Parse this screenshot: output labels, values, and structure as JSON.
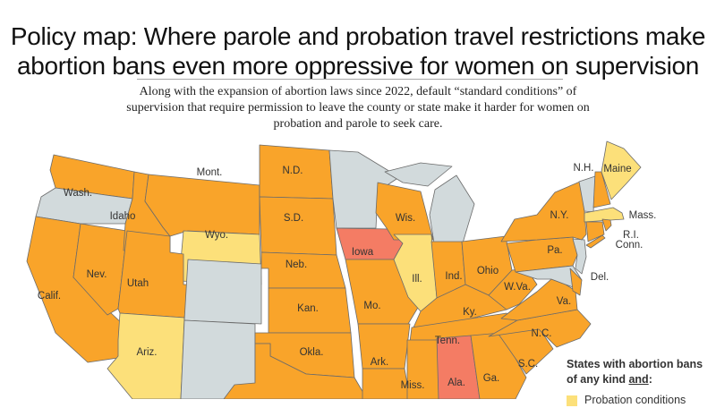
{
  "title": "Policy map: Where parole and probation travel restrictions make abortion bans even more oppressive for women on supervision",
  "subtitle": "Along with the expansion of abortion laws since 2022, default “standard conditions” of supervision that require permission to leave the county or state make it harder for women on probation and parole to seek care.",
  "colors": {
    "orange": "#F9A42A",
    "yellow": "#FCE07A",
    "red": "#F47C64",
    "gray": "#D2DADC"
  },
  "legend": {
    "heading_part1": "States with abortion bans",
    "heading_part2": "of any kind ",
    "heading_and": "and",
    "heading_colon": ":",
    "items": [
      {
        "label": "Probation conditions",
        "color": "yellow"
      }
    ]
  },
  "states": [
    {
      "id": "wa",
      "label": "Wash.",
      "category": "orange"
    },
    {
      "id": "or",
      "label": "",
      "category": "gray"
    },
    {
      "id": "ca",
      "label": "Calif.",
      "category": "orange"
    },
    {
      "id": "nv",
      "label": "Nev.",
      "category": "orange"
    },
    {
      "id": "id",
      "label": "Idaho",
      "category": "orange"
    },
    {
      "id": "mt",
      "label": "Mont.",
      "category": "orange"
    },
    {
      "id": "wy",
      "label": "Wyo.",
      "category": "yellow"
    },
    {
      "id": "ut",
      "label": "Utah",
      "category": "orange"
    },
    {
      "id": "az",
      "label": "Ariz.",
      "category": "yellow"
    },
    {
      "id": "co",
      "label": "",
      "category": "gray"
    },
    {
      "id": "nm",
      "label": "",
      "category": "gray"
    },
    {
      "id": "nd",
      "label": "N.D.",
      "category": "orange"
    },
    {
      "id": "sd",
      "label": "S.D.",
      "category": "orange"
    },
    {
      "id": "ne",
      "label": "Neb.",
      "category": "orange"
    },
    {
      "id": "ks",
      "label": "Kan.",
      "category": "orange"
    },
    {
      "id": "ok",
      "label": "Okla.",
      "category": "orange"
    },
    {
      "id": "tx",
      "label": "",
      "category": "orange"
    },
    {
      "id": "mn",
      "label": "",
      "category": "gray"
    },
    {
      "id": "ia",
      "label": "Iowa",
      "category": "red"
    },
    {
      "id": "mo",
      "label": "Mo.",
      "category": "orange"
    },
    {
      "id": "ar",
      "label": "Ark.",
      "category": "orange"
    },
    {
      "id": "la",
      "label": "",
      "category": "orange"
    },
    {
      "id": "wi",
      "label": "Wis.",
      "category": "orange"
    },
    {
      "id": "il",
      "label": "Ill.",
      "category": "yellow"
    },
    {
      "id": "mi",
      "label": "",
      "category": "gray"
    },
    {
      "id": "mi_up",
      "label": "",
      "category": "gray"
    },
    {
      "id": "in",
      "label": "Ind.",
      "category": "orange"
    },
    {
      "id": "oh",
      "label": "Ohio",
      "category": "orange"
    },
    {
      "id": "ky",
      "label": "Ky.",
      "category": "orange"
    },
    {
      "id": "tn",
      "label": "Tenn.",
      "category": "orange"
    },
    {
      "id": "ms",
      "label": "Miss.",
      "category": "orange"
    },
    {
      "id": "al",
      "label": "Ala.",
      "category": "red"
    },
    {
      "id": "ga",
      "label": "Ga.",
      "category": "orange"
    },
    {
      "id": "sc",
      "label": "S.C.",
      "category": "orange"
    },
    {
      "id": "nc",
      "label": "N.C.",
      "category": "orange"
    },
    {
      "id": "va",
      "label": "Va.",
      "category": "orange"
    },
    {
      "id": "wv",
      "label": "W.Va.",
      "category": "orange"
    },
    {
      "id": "pa",
      "label": "Pa.",
      "category": "orange"
    },
    {
      "id": "md",
      "label": "",
      "category": "gray"
    },
    {
      "id": "de",
      "label": "Del.",
      "category": "orange"
    },
    {
      "id": "nj",
      "label": "",
      "category": "gray"
    },
    {
      "id": "ny",
      "label": "N.Y.",
      "category": "orange"
    },
    {
      "id": "li",
      "label": "",
      "category": "orange"
    },
    {
      "id": "vt",
      "label": "",
      "category": "gray"
    },
    {
      "id": "nh",
      "label": "N.H.",
      "category": "orange"
    },
    {
      "id": "me",
      "label": "Maine",
      "category": "yellow"
    },
    {
      "id": "ma",
      "label": "Mass.",
      "category": "yellow"
    },
    {
      "id": "ct",
      "label": "Conn.",
      "category": "orange"
    },
    {
      "id": "ri",
      "label": "R.I.",
      "category": "orange"
    }
  ]
}
